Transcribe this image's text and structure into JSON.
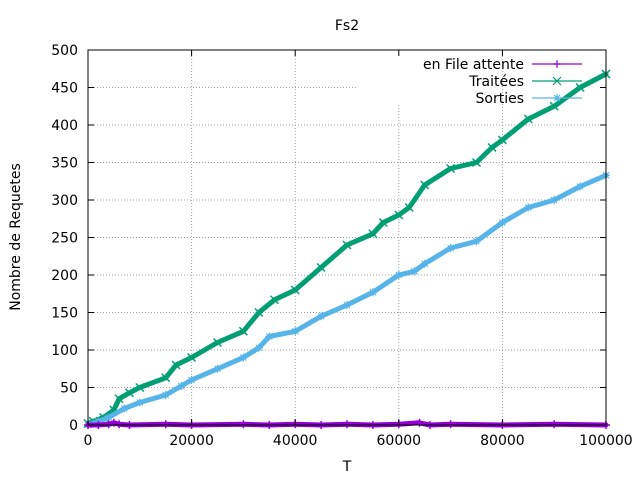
{
  "chart_data": {
    "type": "line",
    "title": "Fs2",
    "xlabel": "T",
    "ylabel": "Nombre de Requetes",
    "xlim": [
      0,
      100000
    ],
    "ylim": [
      0,
      500
    ],
    "x_ticks": [
      0,
      20000,
      40000,
      60000,
      80000,
      100000
    ],
    "y_ticks": [
      0,
      50,
      100,
      150,
      200,
      250,
      300,
      350,
      400,
      450,
      500
    ],
    "grid": true,
    "legend_position": "top-right",
    "series": [
      {
        "name": "en File attente",
        "color": "#9400d3",
        "marker": "plus",
        "points": [
          [
            0,
            0
          ],
          [
            2000,
            0
          ],
          [
            4000,
            1
          ],
          [
            5000,
            3
          ],
          [
            6000,
            1
          ],
          [
            8000,
            0
          ],
          [
            15000,
            1
          ],
          [
            20000,
            0
          ],
          [
            30000,
            1
          ],
          [
            35000,
            0
          ],
          [
            40000,
            1
          ],
          [
            45000,
            0
          ],
          [
            50000,
            1
          ],
          [
            55000,
            0
          ],
          [
            60000,
            1
          ],
          [
            64000,
            3
          ],
          [
            66000,
            0
          ],
          [
            70000,
            1
          ],
          [
            80000,
            0
          ],
          [
            90000,
            1
          ],
          [
            100000,
            0
          ]
        ]
      },
      {
        "name": "Traitées",
        "color": "#009e73",
        "marker": "x",
        "points": [
          [
            0,
            2
          ],
          [
            1000,
            5
          ],
          [
            3000,
            10
          ],
          [
            5000,
            20
          ],
          [
            6000,
            35
          ],
          [
            8000,
            43
          ],
          [
            10000,
            50
          ],
          [
            15000,
            63
          ],
          [
            17000,
            80
          ],
          [
            20000,
            90
          ],
          [
            25000,
            110
          ],
          [
            30000,
            125
          ],
          [
            33000,
            150
          ],
          [
            36000,
            167
          ],
          [
            40000,
            180
          ],
          [
            45000,
            210
          ],
          [
            50000,
            240
          ],
          [
            55000,
            255
          ],
          [
            57000,
            270
          ],
          [
            60000,
            280
          ],
          [
            62000,
            290
          ],
          [
            65000,
            320
          ],
          [
            70000,
            342
          ],
          [
            75000,
            350
          ],
          [
            78000,
            370
          ],
          [
            80000,
            380
          ],
          [
            85000,
            408
          ],
          [
            90000,
            425
          ],
          [
            95000,
            450
          ],
          [
            100000,
            468
          ]
        ]
      },
      {
        "name": "Sorties",
        "color": "#56b4e9",
        "marker": "star",
        "points": [
          [
            0,
            0
          ],
          [
            2000,
            5
          ],
          [
            4000,
            10
          ],
          [
            7000,
            22
          ],
          [
            10000,
            30
          ],
          [
            15000,
            40
          ],
          [
            18000,
            52
          ],
          [
            20000,
            60
          ],
          [
            25000,
            75
          ],
          [
            30000,
            90
          ],
          [
            33000,
            103
          ],
          [
            35000,
            118
          ],
          [
            40000,
            125
          ],
          [
            45000,
            145
          ],
          [
            50000,
            160
          ],
          [
            55000,
            177
          ],
          [
            60000,
            200
          ],
          [
            63000,
            205
          ],
          [
            65000,
            215
          ],
          [
            70000,
            236
          ],
          [
            75000,
            245
          ],
          [
            80000,
            270
          ],
          [
            85000,
            290
          ],
          [
            90000,
            300
          ],
          [
            95000,
            318
          ],
          [
            100000,
            333
          ]
        ]
      }
    ]
  }
}
